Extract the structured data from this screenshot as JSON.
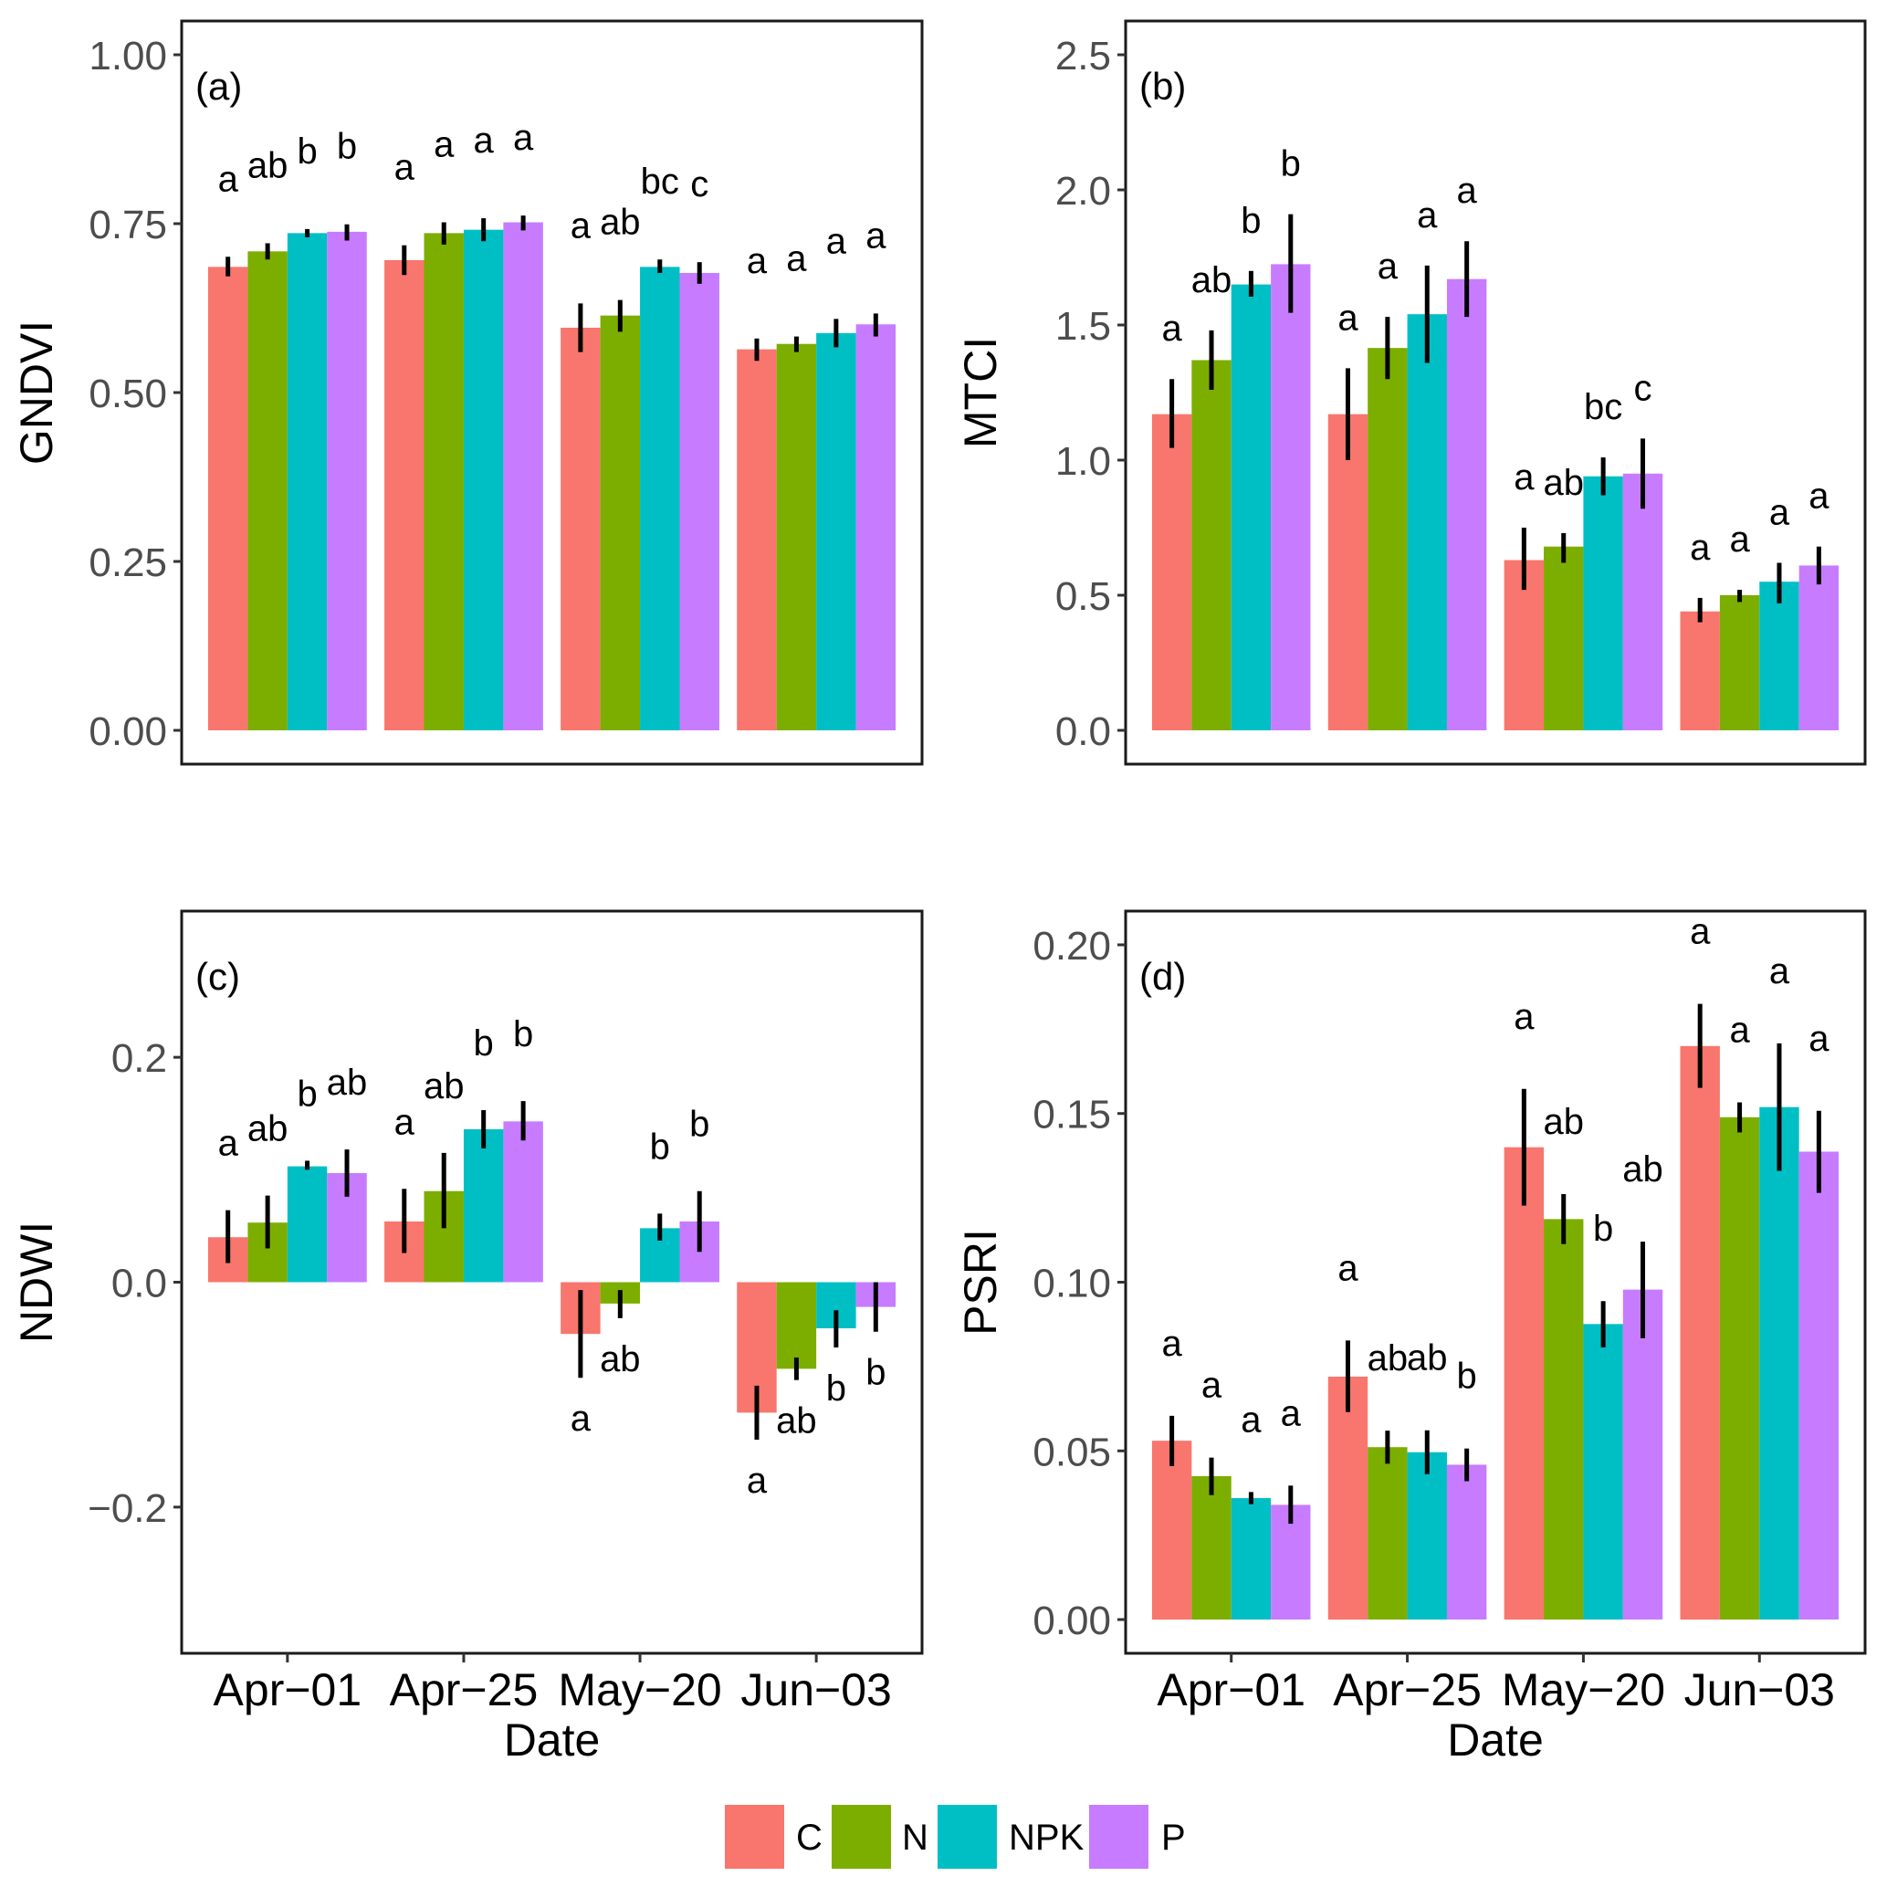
{
  "legend": {
    "items": [
      {
        "label": "C",
        "color": "#F8766D"
      },
      {
        "label": "N",
        "color": "#7CAE00"
      },
      {
        "label": "NPK",
        "color": "#00BFC4"
      },
      {
        "label": "P",
        "color": "#C77CFF"
      }
    ],
    "position": "bottom"
  },
  "chart_data": [
    {
      "type": "bar",
      "panel": "(a)",
      "title": "",
      "xlabel": "",
      "ylabel": "GNDVI",
      "ylim": [
        -0.05,
        1.05
      ],
      "yticks": [
        0.0,
        0.25,
        0.5,
        0.75,
        1.0
      ],
      "ytick_labels": [
        "0.00",
        "0.25",
        "0.50",
        "0.75",
        "1.00"
      ],
      "categories": [
        "Apr−01",
        "Apr−25",
        "May−20",
        "Jun−03"
      ],
      "show_xticks": false,
      "grid": false,
      "series": [
        {
          "name": "C",
          "values": [
            0.686,
            0.696,
            0.596,
            0.564
          ],
          "err_low": [
            0.672,
            0.674,
            0.56,
            0.547
          ],
          "err_high": [
            0.701,
            0.718,
            0.632,
            0.58
          ],
          "letters": [
            "a",
            "a",
            "a",
            "a"
          ]
        },
        {
          "name": "N",
          "values": [
            0.709,
            0.736,
            0.614,
            0.572
          ],
          "err_low": [
            0.697,
            0.719,
            0.59,
            0.56
          ],
          "err_high": [
            0.721,
            0.752,
            0.637,
            0.583
          ],
          "letters": [
            "ab",
            "a",
            "ab",
            "a"
          ]
        },
        {
          "name": "NPK",
          "values": [
            0.736,
            0.741,
            0.686,
            0.588
          ],
          "err_low": [
            0.73,
            0.724,
            0.677,
            0.567
          ],
          "err_high": [
            0.742,
            0.758,
            0.697,
            0.609
          ],
          "letters": [
            "b",
            "a",
            "bc",
            "a"
          ]
        },
        {
          "name": "P",
          "values": [
            0.738,
            0.752,
            0.677,
            0.601
          ],
          "err_low": [
            0.725,
            0.74,
            0.661,
            0.583
          ],
          "err_high": [
            0.749,
            0.762,
            0.693,
            0.617
          ],
          "letters": [
            "b",
            "a",
            "c",
            "a"
          ]
        }
      ]
    },
    {
      "type": "bar",
      "panel": "(b)",
      "title": "",
      "xlabel": "",
      "ylabel": "MTCI",
      "ylim": [
        -0.125,
        2.625
      ],
      "yticks": [
        0.0,
        0.5,
        1.0,
        1.5,
        2.0,
        2.5
      ],
      "ytick_labels": [
        "0.0",
        "0.5",
        "1.0",
        "1.5",
        "2.0",
        "2.5"
      ],
      "categories": [
        "Apr−01",
        "Apr−25",
        "May−20",
        "Jun−03"
      ],
      "show_xticks": false,
      "grid": false,
      "series": [
        {
          "name": "C",
          "values": [
            1.17,
            1.17,
            0.63,
            0.44
          ],
          "err_low": [
            1.045,
            1.0,
            0.52,
            0.4
          ],
          "err_high": [
            1.3,
            1.34,
            0.75,
            0.49
          ],
          "letters": [
            "a",
            "a",
            "a",
            "a"
          ]
        },
        {
          "name": "N",
          "values": [
            1.37,
            1.415,
            0.68,
            0.5
          ],
          "err_low": [
            1.26,
            1.3,
            0.62,
            0.475
          ],
          "err_high": [
            1.48,
            1.53,
            0.73,
            0.52
          ],
          "letters": [
            "ab",
            "a",
            "ab",
            "a"
          ]
        },
        {
          "name": "NPK",
          "values": [
            1.65,
            1.54,
            0.94,
            0.55
          ],
          "err_low": [
            1.605,
            1.36,
            0.87,
            0.47
          ],
          "err_high": [
            1.7,
            1.72,
            1.01,
            0.62
          ],
          "letters": [
            "b",
            "a",
            "bc",
            "a"
          ]
        },
        {
          "name": "P",
          "values": [
            1.725,
            1.67,
            0.95,
            0.61
          ],
          "err_low": [
            1.545,
            1.53,
            0.82,
            0.54
          ],
          "err_high": [
            1.91,
            1.81,
            1.08,
            0.68
          ],
          "letters": [
            "b",
            "a",
            "c",
            "a"
          ]
        }
      ]
    },
    {
      "type": "bar",
      "panel": "(c)",
      "title": "",
      "xlabel": "Date",
      "ylabel": "NDWI",
      "ylim": [
        -0.33,
        0.33
      ],
      "yticks": [
        -0.2,
        0.0,
        0.2
      ],
      "ytick_labels": [
        "−0.2",
        "0.0",
        "0.2"
      ],
      "categories": [
        "Apr−01",
        "Apr−25",
        "May−20",
        "Jun−03"
      ],
      "show_xticks": true,
      "grid": false,
      "series": [
        {
          "name": "C",
          "values": [
            0.04,
            0.054,
            -0.046,
            -0.116
          ],
          "err_low": [
            0.017,
            0.026,
            -0.085,
            -0.14
          ],
          "err_high": [
            0.064,
            0.083,
            -0.007,
            -0.092
          ],
          "letters": [
            "a",
            "a",
            "a",
            "a"
          ]
        },
        {
          "name": "N",
          "values": [
            0.053,
            0.081,
            -0.019,
            -0.077
          ],
          "err_low": [
            0.03,
            0.048,
            -0.032,
            -0.087
          ],
          "err_high": [
            0.077,
            0.115,
            -0.007,
            -0.067
          ],
          "letters": [
            "ab",
            "ab",
            "ab",
            "ab"
          ]
        },
        {
          "name": "NPK",
          "values": [
            0.103,
            0.136,
            0.048,
            -0.041
          ],
          "err_low": [
            0.1,
            0.119,
            0.037,
            -0.058
          ],
          "err_high": [
            0.108,
            0.153,
            0.061,
            -0.025
          ],
          "letters": [
            "b",
            "b",
            "b",
            "b"
          ]
        },
        {
          "name": "P",
          "values": [
            0.097,
            0.143,
            0.054,
            -0.022
          ],
          "err_low": [
            0.076,
            0.126,
            0.027,
            -0.044
          ],
          "err_high": [
            0.118,
            0.161,
            0.081,
            0.0
          ],
          "letters": [
            "ab",
            "b",
            "b",
            "b"
          ]
        }
      ]
    },
    {
      "type": "bar",
      "panel": "(d)",
      "title": "",
      "xlabel": "Date",
      "ylabel": "PSRI",
      "ylim": [
        -0.01,
        0.21
      ],
      "yticks": [
        0.0,
        0.05,
        0.1,
        0.15,
        0.2
      ],
      "ytick_labels": [
        "0.00",
        "0.05",
        "0.10",
        "0.15",
        "0.20"
      ],
      "categories": [
        "Apr−01",
        "Apr−25",
        "May−20",
        "Jun−03"
      ],
      "show_xticks": true,
      "grid": false,
      "series": [
        {
          "name": "C",
          "values": [
            0.053,
            0.072,
            0.14,
            0.17
          ],
          "err_low": [
            0.0455,
            0.0615,
            0.1227,
            0.1576
          ],
          "err_high": [
            0.0604,
            0.0827,
            0.1573,
            0.1825
          ],
          "letters": [
            "a",
            "a",
            "a",
            "a"
          ]
        },
        {
          "name": "N",
          "values": [
            0.0425,
            0.0511,
            0.1187,
            0.1489
          ],
          "err_low": [
            0.0369,
            0.0462,
            0.1113,
            0.1444
          ],
          "err_high": [
            0.048,
            0.056,
            0.1261,
            0.1533
          ],
          "letters": [
            "a",
            "ab",
            "ab",
            "a"
          ]
        },
        {
          "name": "NPK",
          "values": [
            0.036,
            0.0496,
            0.0876,
            0.1519
          ],
          "err_low": [
            0.0342,
            0.0431,
            0.0807,
            0.133
          ],
          "err_high": [
            0.0378,
            0.0561,
            0.0944,
            0.1708
          ],
          "letters": [
            "a",
            "ab",
            "b",
            "a"
          ]
        },
        {
          "name": "P",
          "values": [
            0.034,
            0.0459,
            0.0978,
            0.1387
          ],
          "err_low": [
            0.0284,
            0.041,
            0.0834,
            0.1265
          ],
          "err_high": [
            0.0397,
            0.0507,
            0.112,
            0.1508
          ],
          "letters": [
            "a",
            "b",
            "ab",
            "a"
          ]
        }
      ]
    }
  ]
}
